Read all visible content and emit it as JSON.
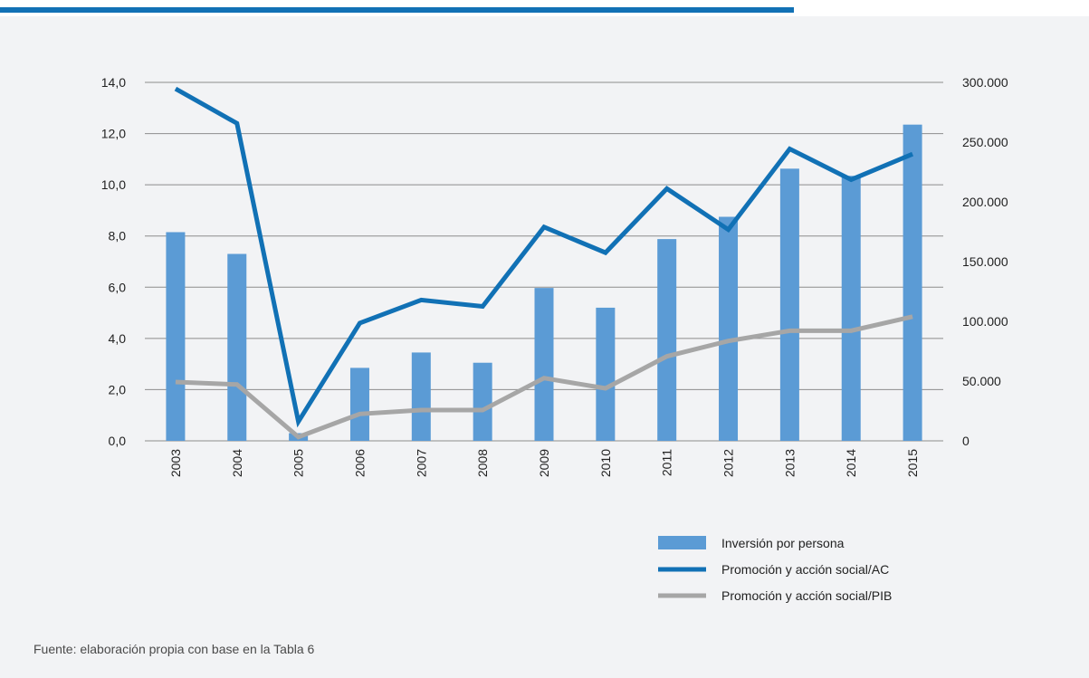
{
  "chart_data": {
    "type": "bar",
    "categories": [
      "2003",
      "2004",
      "2005",
      "2006",
      "2007",
      "2008",
      "2009",
      "2010",
      "2011",
      "2012",
      "2013",
      "2014",
      "2015"
    ],
    "series": [
      {
        "name": "Inversión por persona",
        "chart_kind": "bar",
        "axis": "left",
        "color": "#5b9bd5",
        "values": [
          8.15,
          7.3,
          0.3,
          2.85,
          3.45,
          3.05,
          5.97,
          5.2,
          7.88,
          8.75,
          10.63,
          10.35,
          12.35
        ]
      },
      {
        "name": "Promoción y acción social/AC",
        "chart_kind": "line",
        "axis": "left",
        "color": "#1171b5",
        "values": [
          13.75,
          12.4,
          0.75,
          4.6,
          5.5,
          5.25,
          8.35,
          7.35,
          9.85,
          8.25,
          11.4,
          10.2,
          11.2
        ]
      },
      {
        "name": "Promoción y acción social/PIB",
        "chart_kind": "line",
        "axis": "left",
        "color": "#a6a6a6",
        "values": [
          2.3,
          2.2,
          0.15,
          1.05,
          1.2,
          1.2,
          2.45,
          2.05,
          3.3,
          3.9,
          4.3,
          4.3,
          4.85
        ]
      }
    ],
    "y_left": {
      "min": 0,
      "max": 14,
      "ticks": [
        0,
        2,
        4,
        6,
        8,
        10,
        12,
        14
      ],
      "tick_labels": [
        "0,0",
        "2,0",
        "4,0",
        "6,0",
        "8,0",
        "10,0",
        "12,0",
        "14,0"
      ]
    },
    "y_right": {
      "min": 0,
      "max": 300000,
      "ticks": [
        0,
        50000,
        100000,
        150000,
        200000,
        250000,
        300000
      ],
      "tick_labels": [
        "0",
        "50.000",
        "100.000",
        "150.000",
        "200.000",
        "250.000",
        "300.000"
      ]
    },
    "grid": true,
    "legend_position": "bottom-right",
    "title": "",
    "xlabel": "",
    "ylabel": ""
  },
  "caption": "Fuente: elaboración propia con base en la Tabla 6"
}
